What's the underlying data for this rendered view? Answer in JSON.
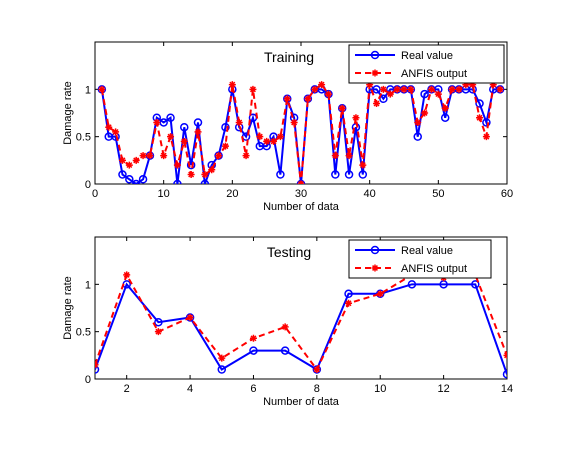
{
  "chart_data": [
    {
      "type": "line",
      "title": "Training",
      "xlabel": "Number of data",
      "ylabel": "Damage rate",
      "xlim": [
        0,
        60
      ],
      "ylim": [
        0,
        1.5
      ],
      "xticks": [
        0,
        10,
        20,
        30,
        40,
        50,
        60
      ],
      "yticks": [
        0,
        0.5,
        1
      ],
      "grid": false,
      "legend_position": "top-right",
      "x": [
        1,
        2,
        3,
        4,
        5,
        6,
        7,
        8,
        9,
        10,
        11,
        12,
        13,
        14,
        15,
        16,
        17,
        18,
        19,
        20,
        21,
        22,
        23,
        24,
        25,
        26,
        27,
        28,
        29,
        30,
        31,
        32,
        33,
        34,
        35,
        36,
        37,
        38,
        39,
        40,
        41,
        42,
        43,
        44,
        45,
        46,
        47,
        48,
        49,
        50,
        51,
        52,
        53,
        54,
        55,
        56,
        57,
        58,
        59
      ],
      "series": [
        {
          "name": "Real value",
          "color": "#0000ff",
          "line": "solid",
          "marker": "circle",
          "values": [
            1.0,
            0.5,
            0.5,
            0.1,
            0.05,
            0.0,
            0.05,
            0.3,
            0.7,
            0.65,
            0.7,
            0.0,
            0.6,
            0.2,
            0.65,
            0.0,
            0.2,
            0.3,
            0.6,
            1.0,
            0.6,
            0.5,
            0.7,
            0.4,
            0.4,
            0.5,
            0.1,
            0.9,
            0.7,
            0.0,
            0.9,
            1.0,
            1.0,
            0.95,
            0.1,
            0.8,
            0.1,
            0.6,
            0.1,
            1.0,
            1.0,
            0.9,
            1.0,
            1.0,
            1.0,
            1.0,
            0.5,
            0.95,
            1.0,
            1.0,
            0.7,
            1.0,
            1.0,
            1.0,
            1.0,
            0.85,
            0.65,
            1.0,
            1.0
          ]
        },
        {
          "name": "ANFIS output",
          "color": "#ff0000",
          "line": "dashed",
          "marker": "star",
          "values": [
            1.0,
            0.6,
            0.55,
            0.25,
            0.2,
            0.25,
            0.3,
            0.3,
            0.65,
            0.3,
            0.5,
            0.2,
            0.45,
            0.1,
            0.55,
            0.1,
            0.15,
            0.3,
            0.4,
            1.05,
            0.65,
            0.3,
            1.0,
            0.5,
            0.45,
            0.45,
            0.5,
            0.9,
            0.65,
            0.0,
            0.9,
            1.0,
            1.05,
            0.95,
            0.3,
            0.8,
            0.3,
            0.7,
            0.2,
            1.05,
            0.85,
            1.0,
            0.95,
            1.0,
            1.0,
            1.0,
            0.65,
            0.75,
            1.0,
            0.95,
            0.8,
            1.0,
            1.0,
            1.05,
            1.05,
            0.7,
            0.5,
            1.05,
            1.0
          ]
        }
      ]
    },
    {
      "type": "line",
      "title": "Testing",
      "xlabel": "Number of data",
      "ylabel": "Damage rate",
      "xlim": [
        1,
        14
      ],
      "ylim": [
        0,
        1.5
      ],
      "xticks": [
        2,
        4,
        6,
        8,
        10,
        12,
        14
      ],
      "yticks": [
        0,
        0.5,
        1
      ],
      "grid": false,
      "legend_position": "top-right",
      "x": [
        1,
        2,
        3,
        4,
        5,
        6,
        7,
        8,
        9,
        10,
        11,
        12,
        13,
        14
      ],
      "series": [
        {
          "name": "Real value",
          "color": "#0000ff",
          "line": "solid",
          "marker": "circle",
          "values": [
            0.1,
            1.0,
            0.6,
            0.65,
            0.1,
            0.3,
            0.3,
            0.1,
            0.9,
            0.9,
            1.0,
            1.0,
            1.0,
            0.05
          ]
        },
        {
          "name": "ANFIS output",
          "color": "#ff0000",
          "line": "dashed",
          "marker": "star",
          "values": [
            0.15,
            1.1,
            0.5,
            0.65,
            0.22,
            0.43,
            0.55,
            0.1,
            0.8,
            0.9,
            1.1,
            1.07,
            1.1,
            0.25
          ]
        }
      ]
    }
  ]
}
